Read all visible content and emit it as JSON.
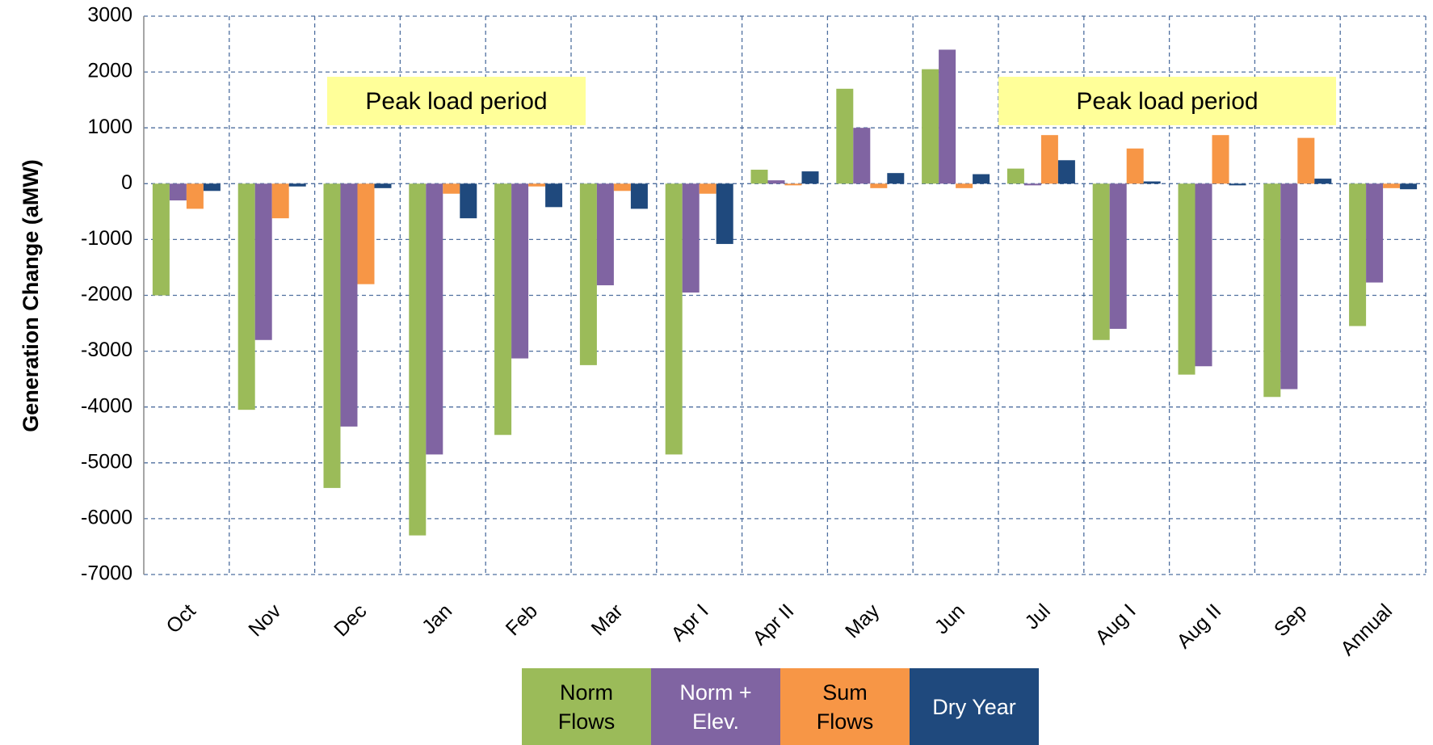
{
  "chart_data": {
    "type": "bar",
    "y_label": "Generation Change (aMW)",
    "categories": [
      "Oct",
      "Nov",
      "Dec",
      "Jan",
      "Feb",
      "Mar",
      "Apr I",
      "Apr II",
      "May",
      "Jun",
      "Jul",
      "Aug I",
      "Aug II",
      "Sep",
      "Annual"
    ],
    "series": [
      {
        "name": "Norm Flows",
        "color": "#9bbb59",
        "values": [
          -2000,
          -4050,
          -5450,
          -6300,
          -4500,
          -3250,
          -4850,
          250,
          1700,
          2050,
          270,
          -2800,
          -3420,
          -3820,
          -2550
        ]
      },
      {
        "name": "Norm + Elev.",
        "color": "#8064a2",
        "values": [
          -300,
          -2800,
          -4350,
          -4850,
          -3130,
          -1820,
          -1950,
          60,
          1000,
          2400,
          -30,
          -2600,
          -3270,
          -3680,
          -1770
        ]
      },
      {
        "name": "Sum Flows",
        "color": "#f79646",
        "values": [
          -450,
          -620,
          -1800,
          -180,
          -50,
          -130,
          -180,
          -30,
          -80,
          -80,
          870,
          630,
          870,
          820,
          -80
        ]
      },
      {
        "name": "Dry Year",
        "color": "#1f497d",
        "values": [
          -130,
          -50,
          -80,
          -620,
          -420,
          -450,
          -1080,
          220,
          190,
          170,
          420,
          40,
          -30,
          90,
          -100
        ]
      }
    ],
    "ylim": [
      -7000,
      3000
    ],
    "yticks": [
      -7000,
      -6000,
      -5000,
      -4000,
      -3000,
      -2000,
      -1000,
      0,
      1000,
      2000,
      3000
    ],
    "grid": true,
    "annotations": [
      "Peak load period",
      "Peak load period"
    ]
  }
}
